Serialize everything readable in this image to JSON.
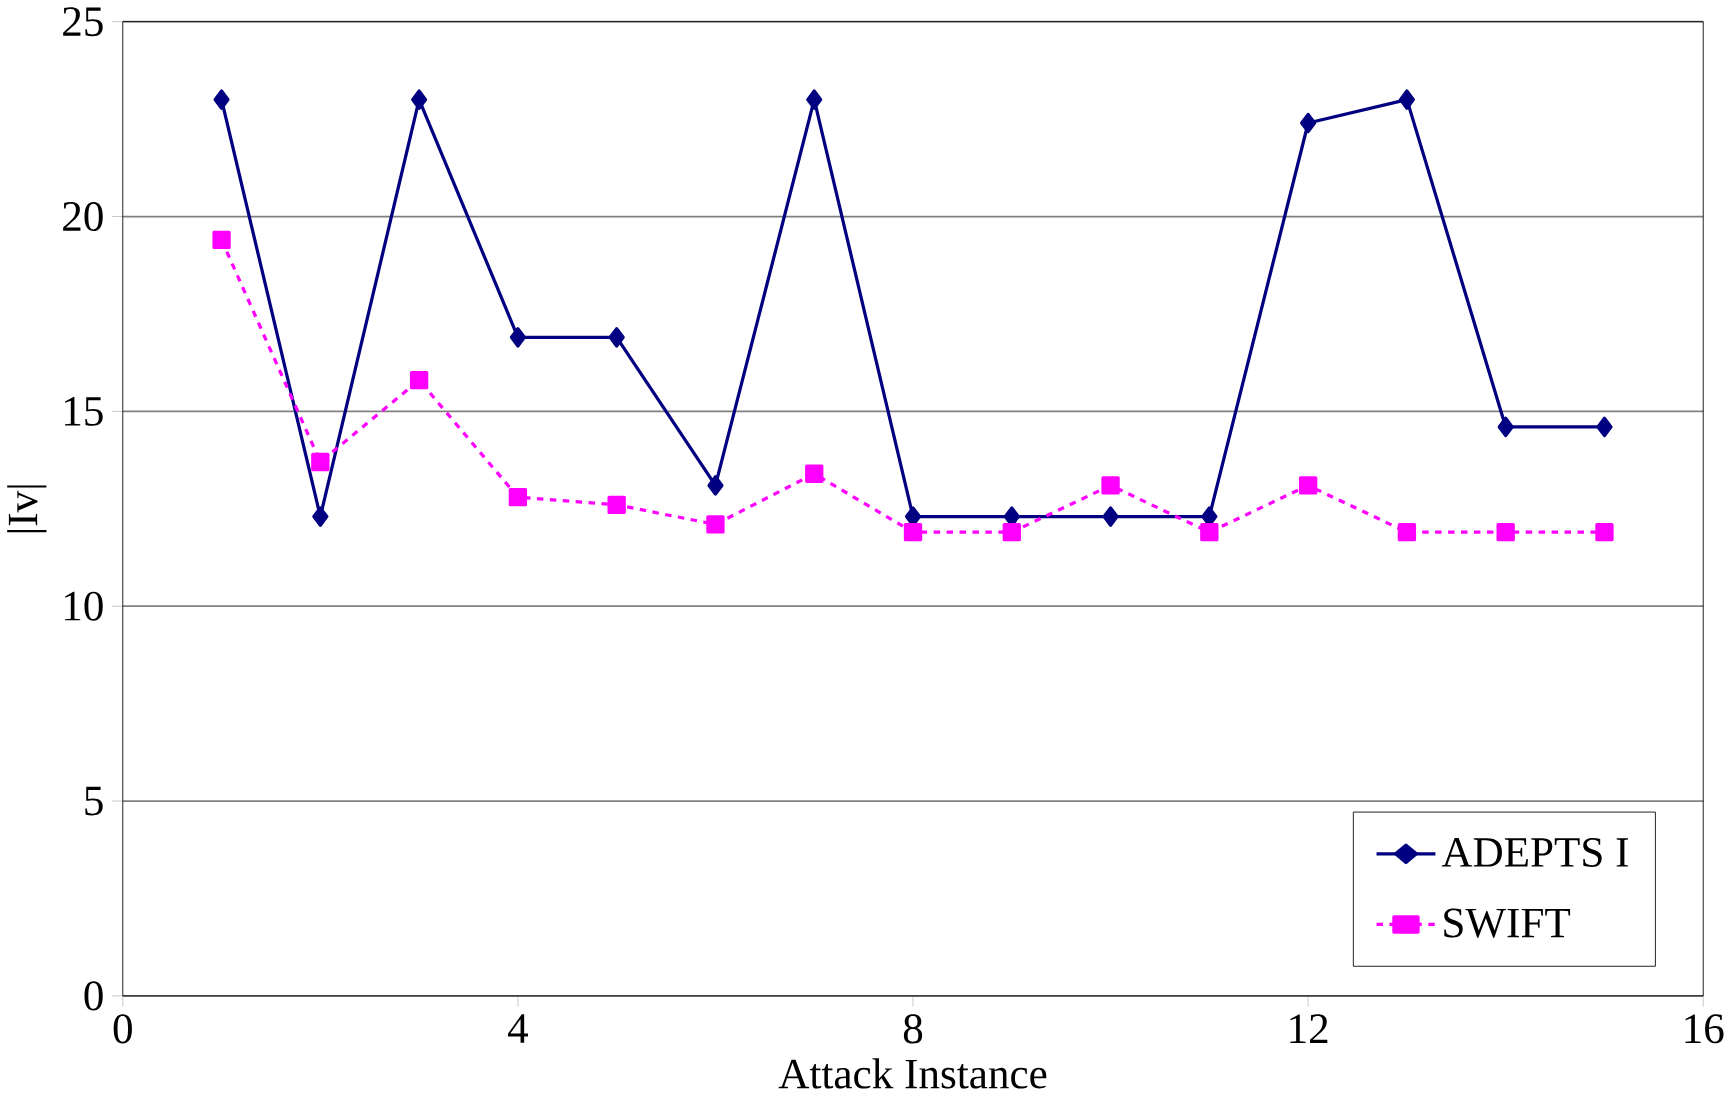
{
  "chart_data": {
    "type": "line",
    "xlabel": "Attack Instance",
    "ylabel": "|Iv|",
    "x": [
      1,
      2,
      3,
      4,
      5,
      6,
      7,
      8,
      9,
      10,
      11,
      12,
      13,
      14,
      15
    ],
    "series": [
      {
        "name": "ADEPTS I",
        "color": "#000080",
        "marker": "diamond",
        "line_style": "solid",
        "values": [
          23,
          12.3,
          23,
          16.9,
          16.9,
          13.1,
          23,
          12.3,
          12.3,
          12.3,
          12.3,
          22.4,
          23,
          14.6,
          14.6
        ]
      },
      {
        "name": "SWIFT",
        "color": "#ff00ff",
        "marker": "square",
        "line_style": "dashed",
        "values": [
          19.4,
          13.7,
          15.8,
          12.8,
          12.6,
          12.1,
          13.4,
          11.9,
          11.9,
          13.1,
          11.9,
          13.1,
          11.9,
          11.9,
          11.9
        ]
      }
    ],
    "xlim": [
      0,
      16
    ],
    "xticks": [
      0,
      4,
      8,
      12,
      16
    ],
    "ylim": [
      0,
      25
    ],
    "yticks": [
      0,
      5,
      10,
      15,
      20,
      25
    ],
    "grid": "y",
    "legend": "bottom right"
  }
}
